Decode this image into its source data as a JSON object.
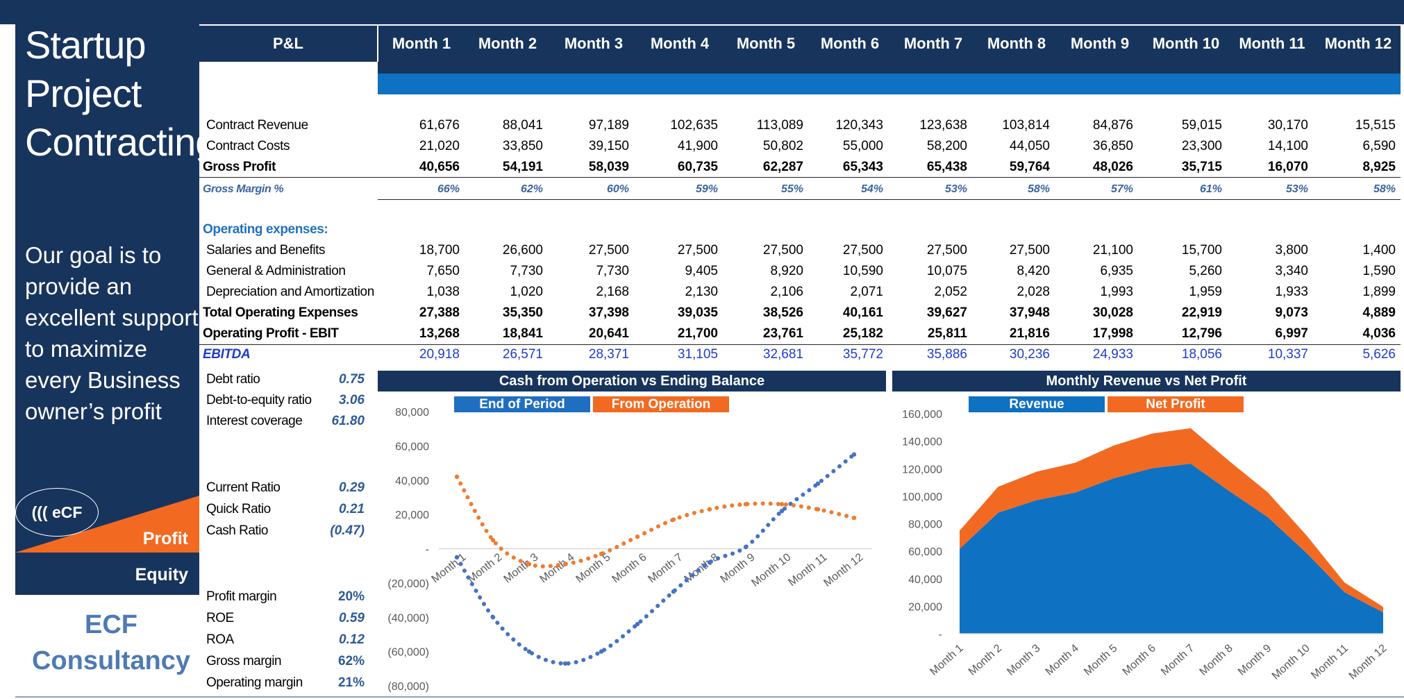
{
  "brand": {
    "title_lines": [
      "Startup",
      "Project",
      "Contracting"
    ],
    "goal": "Our goal is to provide an excellent support to maximize every Business owner’s profit",
    "logo_text": "((( eCF",
    "profit_label": "Profit",
    "equity_label": "Equity",
    "firm_lines": [
      "ECF",
      "Consultancy"
    ]
  },
  "table": {
    "header_label": "P&L",
    "months": [
      "Month 1",
      "Month 2",
      "Month 3",
      "Month 4",
      "Month 5",
      "Month 6",
      "Month 7",
      "Month 8",
      "Month 9",
      "Month 10",
      "Month 11",
      "Month 12"
    ],
    "rows": [
      {
        "label": "Contract Revenue",
        "style": "normal",
        "values": [
          "61,676",
          "88,041",
          "97,189",
          "102,635",
          "113,089",
          "120,343",
          "123,638",
          "103,814",
          "84,876",
          "59,015",
          "30,170",
          "15,515"
        ]
      },
      {
        "label": "Contract Costs",
        "style": "normal",
        "values": [
          "21,020",
          "33,850",
          "39,150",
          "41,900",
          "50,802",
          "55,000",
          "58,200",
          "44,050",
          "36,850",
          "23,300",
          "14,100",
          "6,590"
        ]
      },
      {
        "label": "Gross Profit",
        "style": "bold",
        "values": [
          "40,656",
          "54,191",
          "58,039",
          "60,735",
          "62,287",
          "65,343",
          "65,438",
          "59,764",
          "48,026",
          "35,715",
          "16,070",
          "8,925"
        ]
      },
      {
        "label": "Gross Margin %",
        "style": "margin",
        "values": [
          "66%",
          "62%",
          "60%",
          "59%",
          "55%",
          "54%",
          "53%",
          "58%",
          "57%",
          "61%",
          "53%",
          "58%"
        ]
      },
      {
        "label": "Operating expenses:",
        "style": "section",
        "values": []
      },
      {
        "label": "Salaries and Benefits",
        "style": "normal",
        "values": [
          "18,700",
          "26,600",
          "27,500",
          "27,500",
          "27,500",
          "27,500",
          "27,500",
          "27,500",
          "21,100",
          "15,700",
          "3,800",
          "1,400"
        ]
      },
      {
        "label": "General & Administration",
        "style": "normal",
        "values": [
          "7,650",
          "7,730",
          "7,730",
          "9,405",
          "8,920",
          "10,590",
          "10,075",
          "8,420",
          "6,935",
          "5,260",
          "3,340",
          "1,590"
        ]
      },
      {
        "label": "Depreciation and Amortization",
        "style": "normal",
        "values": [
          "1,038",
          "1,020",
          "2,168",
          "2,130",
          "2,106",
          "2,071",
          "2,052",
          "2,028",
          "1,993",
          "1,959",
          "1,933",
          "1,899"
        ]
      },
      {
        "label": "Total Operating Expenses",
        "style": "bold",
        "values": [
          "27,388",
          "35,350",
          "37,398",
          "39,035",
          "38,526",
          "40,161",
          "39,627",
          "37,948",
          "30,028",
          "22,919",
          "9,073",
          "4,889"
        ]
      },
      {
        "label": "Operating Profit - EBIT",
        "style": "bold",
        "values": [
          "13,268",
          "18,841",
          "20,641",
          "21,700",
          "23,761",
          "25,182",
          "25,811",
          "21,816",
          "17,998",
          "12,796",
          "6,997",
          "4,036"
        ]
      },
      {
        "label": "EBITDA",
        "style": "ebitda",
        "values": [
          "20,918",
          "26,571",
          "28,371",
          "31,105",
          "32,681",
          "35,772",
          "35,886",
          "30,236",
          "24,933",
          "18,056",
          "10,337",
          "5,626"
        ]
      }
    ]
  },
  "ratios": [
    {
      "label": "Debt ratio",
      "value": "0.75",
      "kind": "num"
    },
    {
      "label": "Debt-to-equity ratio",
      "value": "3.06",
      "kind": "num"
    },
    {
      "label": "Interest coverage",
      "value": "61.80",
      "kind": "num"
    },
    {
      "label": "Current Ratio",
      "value": "0.29",
      "kind": "num"
    },
    {
      "label": "Quick Ratio",
      "value": "0.21",
      "kind": "num"
    },
    {
      "label": "Cash Ratio",
      "value": "(0.47)",
      "kind": "num"
    },
    {
      "label": "Profit margin",
      "value": "20%",
      "kind": "pct"
    },
    {
      "label": "ROE",
      "value": "0.59",
      "kind": "num"
    },
    {
      "label": "ROA",
      "value": "0.12",
      "kind": "num"
    },
    {
      "label": "Gross margin",
      "value": "62%",
      "kind": "pct"
    },
    {
      "label": "Operating margin",
      "value": "21%",
      "kind": "pct"
    }
  ],
  "colors": {
    "navy": "#17345d",
    "blue": "#0f71c2",
    "orange": "#f26a21",
    "series_blue": "#4472c4",
    "series_orange": "#ed7d31"
  },
  "chart_data": [
    {
      "type": "scatter",
      "title": "Cash from Operation vs Ending Balance",
      "xlabel": "",
      "ylabel": "",
      "categories": [
        "Month 1",
        "Month 2",
        "Month 3",
        "Month 4",
        "Month 5",
        "Month 6",
        "Month 7",
        "Month 8",
        "Month 9",
        "Month 10",
        "Month 11",
        "Month 12"
      ],
      "ylim": [
        -80000,
        80000
      ],
      "yticks": [
        80000,
        60000,
        40000,
        20000,
        0,
        -20000,
        -40000,
        -60000,
        -80000
      ],
      "ytick_labels": [
        "80,000",
        "60,000",
        "40,000",
        "20,000",
        "-",
        "(20,000)",
        "(40,000)",
        "(60,000)",
        "(80,000)"
      ],
      "legend": "top",
      "series": [
        {
          "name": "End of Period",
          "color": "#4472c4",
          "values": [
            -5000,
            -40000,
            -60000,
            -67000,
            -60000,
            -44000,
            -25000,
            -8000,
            1000,
            22000,
            38000,
            55000
          ]
        },
        {
          "name": "From Operation",
          "color": "#ed7d31",
          "values": [
            42000,
            5000,
            -9000,
            -9000,
            -3000,
            7000,
            17000,
            23000,
            26000,
            26000,
            23000,
            18000
          ]
        }
      ]
    },
    {
      "type": "area",
      "title": "Monthly Revenue vs Net Profit",
      "xlabel": "",
      "ylabel": "",
      "categories": [
        "Month 1",
        "Month 2",
        "Month 3",
        "Month 4",
        "Month 5",
        "Month 6",
        "Month 7",
        "Month 8",
        "Month 9",
        "Month 10",
        "Month 11",
        "Month 12"
      ],
      "ylim": [
        0,
        160000
      ],
      "yticks": [
        160000,
        140000,
        120000,
        100000,
        80000,
        60000,
        40000,
        20000,
        0
      ],
      "ytick_labels": [
        "160,000",
        "140,000",
        "120,000",
        "100,000",
        "80,000",
        "60,000",
        "40,000",
        "20,000",
        "-"
      ],
      "legend": "top",
      "stacked": true,
      "series": [
        {
          "name": "Revenue",
          "color": "#0f71c2",
          "values": [
            61676,
            88041,
            97189,
            102635,
            113089,
            120343,
            123638,
            103814,
            84876,
            59015,
            30170,
            15515
          ]
        },
        {
          "name": "Net Profit",
          "color": "#f26a21",
          "values": [
            13268,
            18841,
            20641,
            21700,
            23761,
            25182,
            25811,
            21816,
            17998,
            12796,
            6997,
            4036
          ]
        }
      ]
    }
  ]
}
